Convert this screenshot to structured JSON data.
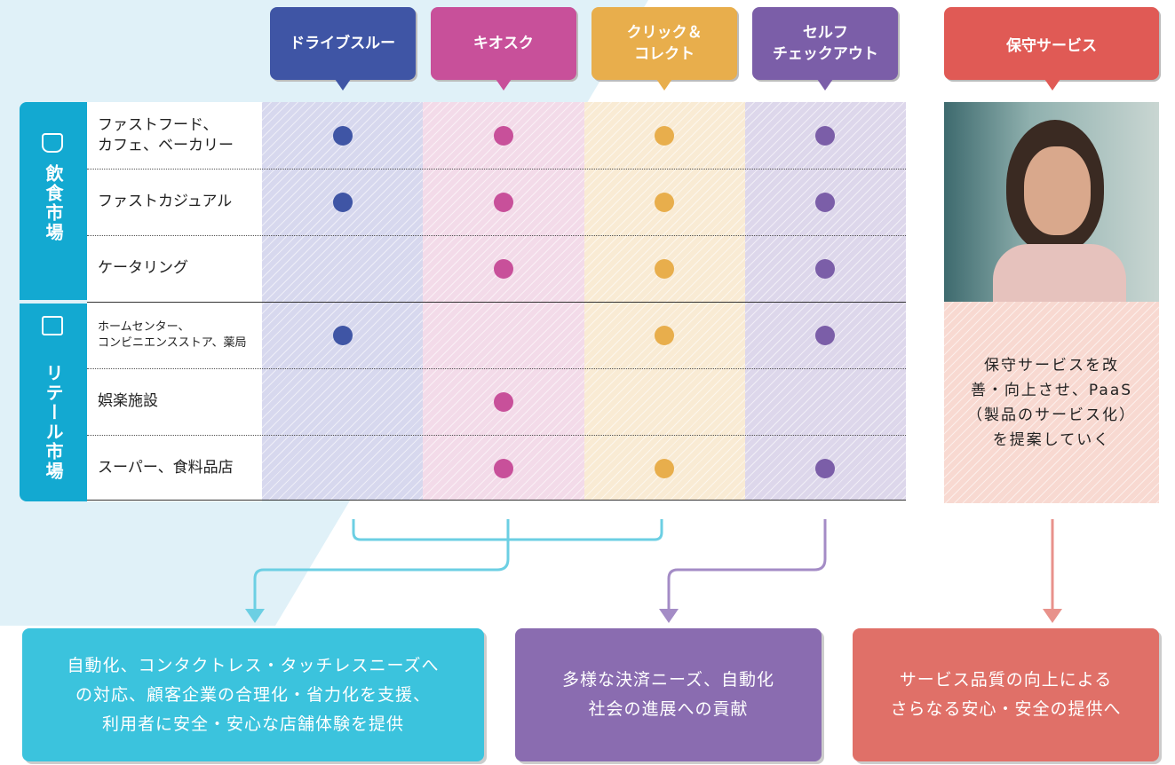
{
  "columns": [
    {
      "label": [
        "ドライブスルー"
      ],
      "color": "#3f55a5",
      "tint": "#d7d8ee"
    },
    {
      "label": [
        "キオスク"
      ],
      "color": "#c8509a",
      "tint": "#f3dbe9"
    },
    {
      "label": [
        "クリック＆",
        "コレクト"
      ],
      "color": "#e8ae4c",
      "tint": "#f9ebd4"
    },
    {
      "label": [
        "セルフ",
        "チェックアウト"
      ],
      "color": "#7b5ea8",
      "tint": "#ddd7eb"
    }
  ],
  "groups": [
    {
      "label": "飲食市場",
      "rows": [
        {
          "label": [
            "ファストフード、",
            "カフェ、ベーカリー"
          ],
          "marks": [
            true,
            true,
            true,
            true
          ]
        },
        {
          "label": [
            "ファストカジュアル"
          ],
          "marks": [
            true,
            true,
            true,
            true
          ]
        },
        {
          "label": [
            "ケータリング"
          ],
          "marks": [
            false,
            true,
            true,
            true
          ]
        }
      ]
    },
    {
      "label": "リテール市場",
      "rows": [
        {
          "label": [
            "ホームセンター、",
            "コンビニエンスストア、薬局"
          ],
          "marks": [
            true,
            false,
            true,
            true
          ]
        },
        {
          "label": [
            "娯楽施設"
          ],
          "marks": [
            false,
            true,
            false,
            false
          ]
        },
        {
          "label": [
            "スーパー、食料品店"
          ],
          "marks": [
            false,
            true,
            true,
            true
          ]
        }
      ]
    }
  ],
  "service": {
    "label": "保守サービス",
    "color": "#e05a55",
    "description": [
      "保守サービスを改",
      "善・向上させ、PaaS",
      "（製品のサービス化）",
      "を提案していく"
    ]
  },
  "outcomes": [
    {
      "lines": [
        "自動化、コンタクトレス・タッチレスニーズへ",
        "の対応、顧客企業の合理化・省力化を支援、",
        "利用者に安全・安心な店舗体験を提供"
      ],
      "color": "#3bc3dd"
    },
    {
      "lines": [
        "多様な決済ニーズ、自動化",
        "社会の進展への貢献"
      ],
      "color": "#8a6cb0"
    },
    {
      "lines": [
        "サービス品質の向上による",
        "さらなる安心・安全の提供へ"
      ],
      "color": "#e07068"
    }
  ]
}
